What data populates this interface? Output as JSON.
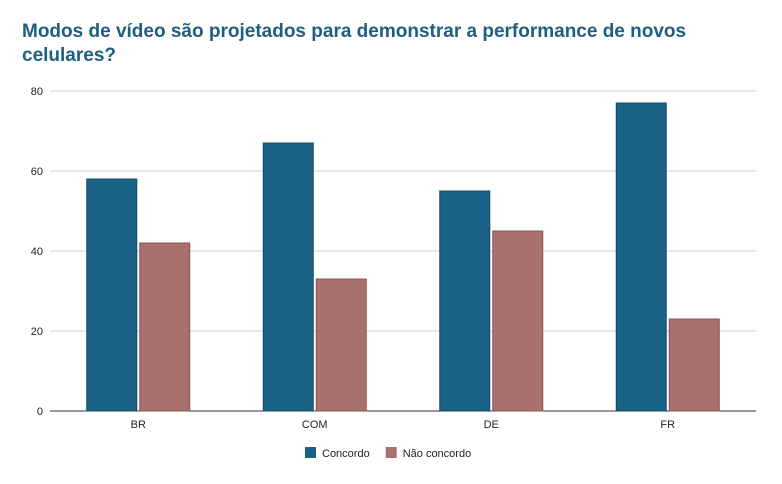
{
  "chart_data": {
    "type": "bar",
    "title": "Modos de vídeo são projetados para demonstrar a performance de novos celulares?",
    "categories": [
      "BR",
      "COM",
      "DE",
      "FR"
    ],
    "series": [
      {
        "name": "Concordo",
        "color": "#1b6386",
        "values": [
          58,
          67,
          55,
          77
        ]
      },
      {
        "name": "Não concordo",
        "color": "#a8706e",
        "values": [
          42,
          33,
          45,
          23
        ]
      }
    ],
    "yticks": [
      0,
      20,
      40,
      60,
      80
    ],
    "ylim": [
      0,
      80
    ],
    "grid": true,
    "legend_position": "bottom",
    "xlabel": "",
    "ylabel": ""
  }
}
